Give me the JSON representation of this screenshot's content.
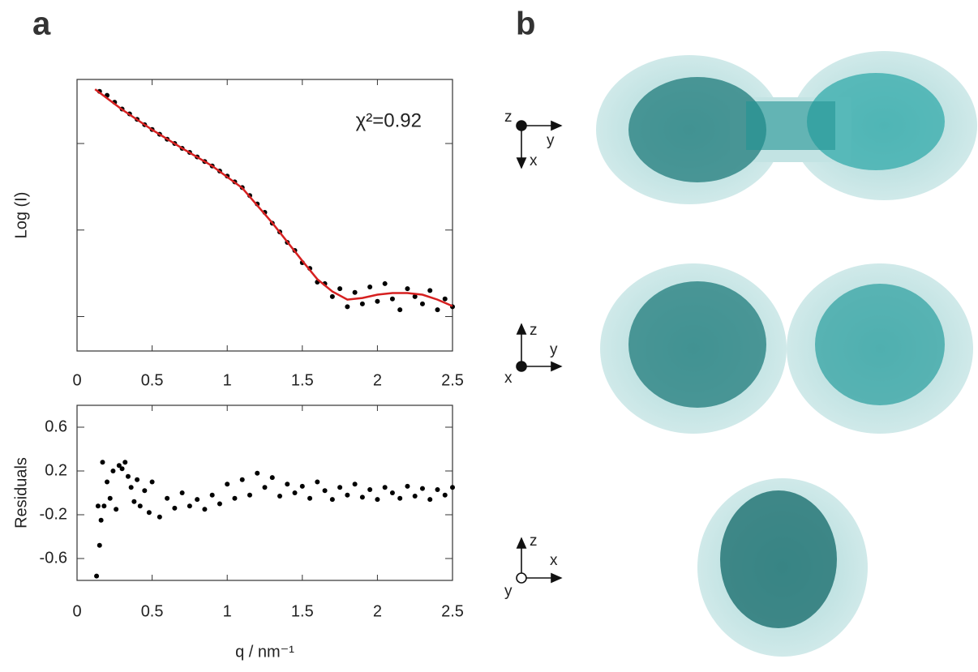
{
  "panels": [
    "a",
    "b"
  ],
  "chart_data": [
    {
      "type": "line",
      "y_scale": "log",
      "ylabel": "Log (I)",
      "annotation": "χ²=0.92",
      "xlim": [
        0,
        2.5
      ],
      "xticks": [
        0,
        0.5,
        1,
        1.5,
        2,
        2.5
      ],
      "ylim": [
        0.004,
        5.5
      ],
      "yticks": [
        0.01,
        0.1,
        1
      ],
      "series": [
        {
          "marker": "dot",
          "color": "#000000",
          "x": [
            0.15,
            0.2,
            0.25,
            0.3,
            0.35,
            0.4,
            0.45,
            0.5,
            0.55,
            0.6,
            0.65,
            0.7,
            0.75,
            0.8,
            0.85,
            0.9,
            0.95,
            1.0,
            1.05,
            1.1,
            1.15,
            1.2,
            1.25,
            1.3,
            1.35,
            1.4,
            1.45,
            1.5,
            1.55,
            1.6,
            1.65,
            1.7,
            1.75,
            1.8,
            1.85,
            1.9,
            1.95,
            2.0,
            2.05,
            2.1,
            2.15,
            2.2,
            2.25,
            2.3,
            2.35,
            2.4,
            2.45,
            2.5
          ],
          "values": [
            4.0,
            3.6,
            3.0,
            2.5,
            2.2,
            1.9,
            1.65,
            1.45,
            1.28,
            1.12,
            1.0,
            0.88,
            0.79,
            0.7,
            0.62,
            0.55,
            0.48,
            0.42,
            0.36,
            0.31,
            0.25,
            0.2,
            0.16,
            0.12,
            0.095,
            0.072,
            0.058,
            0.042,
            0.036,
            0.025,
            0.024,
            0.017,
            0.021,
            0.013,
            0.019,
            0.014,
            0.022,
            0.015,
            0.024,
            0.016,
            0.012,
            0.021,
            0.017,
            0.014,
            0.02,
            0.012,
            0.016,
            0.013
          ]
        },
        {
          "marker": "line",
          "color": "#d62020",
          "x": [
            0.12,
            0.3,
            0.5,
            0.7,
            0.9,
            1.1,
            1.3,
            1.5,
            1.6,
            1.7,
            1.8,
            1.9,
            2.0,
            2.1,
            2.2,
            2.3,
            2.4,
            2.5
          ],
          "values": [
            4.23,
            2.47,
            1.44,
            0.88,
            0.55,
            0.306,
            0.121,
            0.044,
            0.027,
            0.0195,
            0.0157,
            0.0164,
            0.0179,
            0.0187,
            0.0187,
            0.0179,
            0.0157,
            0.0132
          ]
        }
      ]
    },
    {
      "type": "scatter",
      "ylabel": "Residuals",
      "xlabel": "q / nm⁻¹",
      "xlim": [
        0,
        2.5
      ],
      "xticks": [
        0,
        0.5,
        1,
        1.5,
        2,
        2.5
      ],
      "ylim": [
        -0.8,
        0.8
      ],
      "yticks": [
        -0.6,
        -0.2,
        0.2,
        0.6
      ],
      "color": "#000000",
      "x": [
        0.13,
        0.14,
        0.15,
        0.16,
        0.17,
        0.18,
        0.2,
        0.22,
        0.24,
        0.26,
        0.28,
        0.3,
        0.32,
        0.34,
        0.36,
        0.38,
        0.4,
        0.42,
        0.45,
        0.48,
        0.5,
        0.55,
        0.6,
        0.65,
        0.7,
        0.75,
        0.8,
        0.85,
        0.9,
        0.95,
        1.0,
        1.05,
        1.1,
        1.15,
        1.2,
        1.25,
        1.3,
        1.35,
        1.4,
        1.45,
        1.5,
        1.55,
        1.6,
        1.65,
        1.7,
        1.75,
        1.8,
        1.85,
        1.9,
        1.95,
        2.0,
        2.05,
        2.1,
        2.15,
        2.2,
        2.25,
        2.3,
        2.35,
        2.4,
        2.45,
        2.5
      ],
      "values": [
        -0.76,
        -0.12,
        -0.48,
        -0.25,
        0.28,
        -0.12,
        0.1,
        -0.05,
        0.2,
        -0.15,
        0.25,
        0.22,
        0.28,
        0.15,
        0.05,
        -0.08,
        0.12,
        -0.12,
        0.02,
        -0.18,
        0.1,
        -0.22,
        -0.05,
        -0.14,
        0.0,
        -0.12,
        -0.06,
        -0.15,
        -0.02,
        -0.1,
        0.08,
        -0.05,
        0.12,
        -0.02,
        0.18,
        0.05,
        0.14,
        -0.03,
        0.08,
        0.0,
        0.06,
        -0.05,
        0.1,
        0.02,
        -0.06,
        0.05,
        -0.02,
        0.08,
        -0.04,
        0.03,
        -0.06,
        0.05,
        0.0,
        -0.05,
        0.06,
        -0.03,
        0.04,
        -0.06,
        0.03,
        -0.02,
        0.05
      ]
    }
  ],
  "axis_diagrams": [
    [
      "z",
      "y",
      "x"
    ],
    [
      "z",
      "y",
      "x"
    ],
    [
      "z",
      "x",
      "y"
    ]
  ]
}
